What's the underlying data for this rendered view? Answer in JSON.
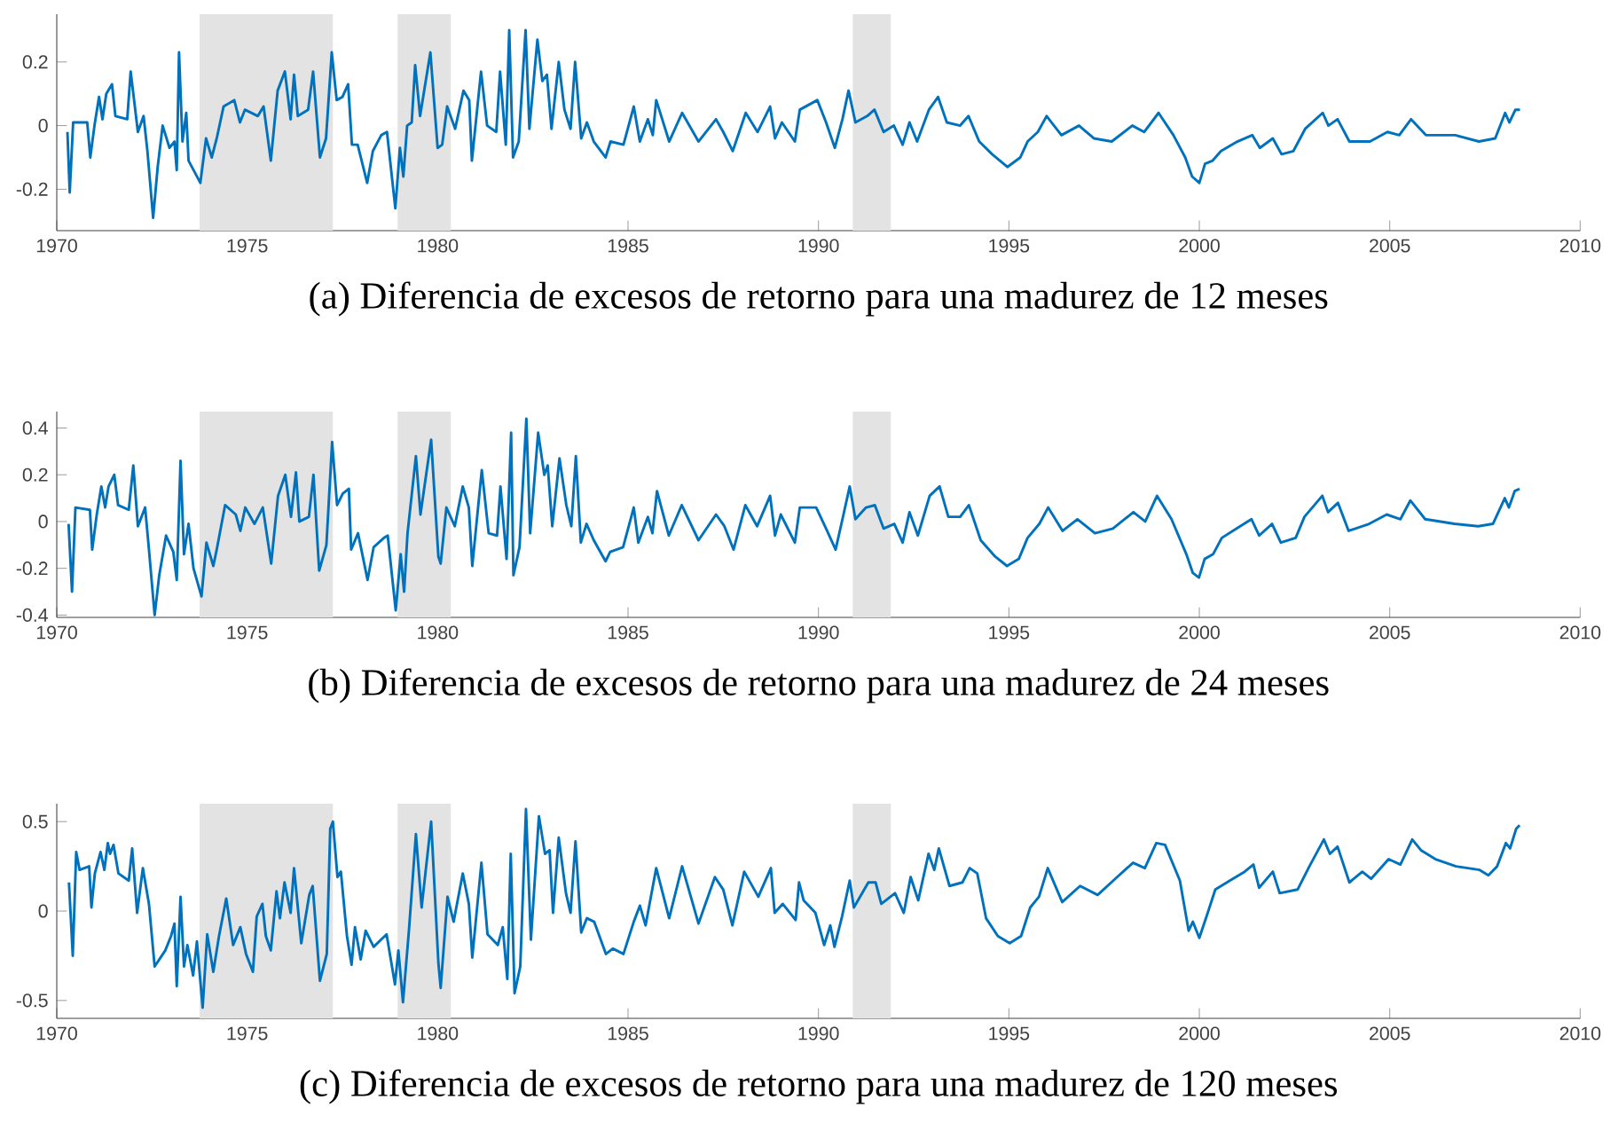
{
  "chart_data": [
    {
      "type": "line",
      "title": "(a) Diferencia de excesos de retorno para una madurez de 12 meses",
      "color": "#0072bd",
      "xlim": [
        1970,
        2010
      ],
      "ylim": [
        -0.33,
        0.35
      ],
      "xticks": [
        1970,
        1975,
        1980,
        1985,
        1990,
        1995,
        2000,
        2005,
        2010
      ],
      "yticks": [
        -0.2,
        0,
        0.2
      ],
      "bands": [
        {
          "axis": "x",
          "from": 1973.75,
          "to": 1977.25,
          "color": "#e3e3e3"
        },
        {
          "axis": "x",
          "from": 1978.95,
          "to": 1980.35,
          "color": "#e3e3e3"
        },
        {
          "axis": "x",
          "from": 1990.9,
          "to": 1991.9,
          "color": "#e3e3e3"
        }
      ],
      "x": [
        1970.28,
        1970.34,
        1970.43,
        1970.8,
        1970.88,
        1970.99,
        1971.11,
        1971.2,
        1971.3,
        1971.45,
        1971.54,
        1971.85,
        1971.94,
        1972.13,
        1972.28,
        1972.38,
        1972.53,
        1972.65,
        1972.78,
        1972.96,
        1973.09,
        1973.15,
        1973.21,
        1973.3,
        1973.4,
        1973.46,
        1973.77,
        1973.92,
        1974.07,
        1974.2,
        1974.38,
        1974.66,
        1974.81,
        1974.94,
        1975.28,
        1975.43,
        1975.62,
        1975.8,
        1975.99,
        1976.14,
        1976.23,
        1976.33,
        1976.6,
        1976.73,
        1976.91,
        1977.07,
        1977.22,
        1977.35,
        1977.5,
        1977.65,
        1977.75,
        1977.9,
        1978.15,
        1978.3,
        1978.52,
        1978.67,
        1978.89,
        1979.01,
        1979.1,
        1979.2,
        1979.32,
        1979.41,
        1979.54,
        1979.81,
        1980,
        1980.12,
        1980.25,
        1980.46,
        1980.68,
        1980.83,
        1980.9,
        1981.14,
        1981.3,
        1981.54,
        1981.64,
        1981.79,
        1981.88,
        1981.98,
        1982.13,
        1982.31,
        1982.41,
        1982.62,
        1982.75,
        1982.87,
        1982.99,
        1983.18,
        1983.33,
        1983.49,
        1983.61,
        1983.77,
        1983.92,
        1984.1,
        1984.41,
        1984.54,
        1984.88,
        1985.15,
        1985.31,
        1985.52,
        1985.65,
        1985.74,
        1986.08,
        1986.42,
        1986.85,
        1987.31,
        1987.5,
        1987.75,
        1988.09,
        1988.4,
        1988.73,
        1988.86,
        1989.04,
        1989.38,
        1989.51,
        1989.97,
        1990.2,
        1990.43,
        1990.63,
        1990.79,
        1990.97,
        1991.28,
        1991.47,
        1991.71,
        1991.98,
        1992.21,
        1992.39,
        1992.59,
        1992.9,
        1993.14,
        1993.37,
        1993.72,
        1993.94,
        1994.22,
        1994.56,
        1994.96,
        1995.3,
        1995.49,
        1995.76,
        1995.99,
        1996.38,
        1996.84,
        1997.23,
        1997.7,
        1998.24,
        1998.55,
        1998.93,
        1999.32,
        1999.63,
        1999.81,
        2000,
        2000.15,
        2000.35,
        2000.57,
        2001,
        2001.39,
        2001.59,
        2001.93,
        2002.16,
        2002.47,
        2002.78,
        2003.24,
        2003.39,
        2003.63,
        2003.94,
        2004.48,
        2004.94,
        2005.25,
        2005.56,
        2005.95,
        2006.72,
        2007.34,
        2007.77,
        2008.03,
        2008.14,
        2008.3,
        2008.42
      ],
      "values": [
        -0.02,
        -0.21,
        0.01,
        0.01,
        -0.1,
        0,
        0.09,
        0.02,
        0.1,
        0.13,
        0.03,
        0.02,
        0.17,
        -0.02,
        0.03,
        -0.08,
        -0.29,
        -0.13,
        0,
        -0.07,
        -0.05,
        -0.14,
        0.23,
        -0.05,
        0.04,
        -0.11,
        -0.18,
        -0.04,
        -0.1,
        -0.04,
        0.06,
        0.08,
        0.01,
        0.05,
        0.03,
        0.06,
        -0.11,
        0.11,
        0.17,
        0.02,
        0.16,
        0.03,
        0.05,
        0.17,
        -0.1,
        -0.04,
        0.23,
        0.08,
        0.09,
        0.13,
        -0.06,
        -0.06,
        -0.18,
        -0.08,
        -0.03,
        -0.02,
        -0.26,
        -0.07,
        -0.16,
        0,
        0.01,
        0.19,
        0.03,
        0.23,
        -0.07,
        -0.06,
        0.06,
        -0.01,
        0.11,
        0.08,
        -0.11,
        0.17,
        0,
        -0.02,
        0.17,
        -0.06,
        0.3,
        -0.1,
        -0.05,
        0.3,
        -0.01,
        0.27,
        0.14,
        0.16,
        -0.01,
        0.2,
        0.05,
        -0.01,
        0.2,
        -0.04,
        0.01,
        -0.05,
        -0.1,
        -0.05,
        -0.06,
        0.06,
        -0.05,
        0.02,
        -0.03,
        0.08,
        -0.05,
        0.04,
        -0.05,
        0.02,
        -0.02,
        -0.08,
        0.04,
        -0.02,
        0.06,
        -0.04,
        0.01,
        -0.05,
        0.05,
        0.08,
        0.01,
        -0.07,
        0.02,
        0.11,
        0.01,
        0.03,
        0.05,
        -0.02,
        0,
        -0.06,
        0.01,
        -0.05,
        0.05,
        0.09,
        0.01,
        0,
        0.03,
        -0.05,
        -0.09,
        -0.13,
        -0.1,
        -0.05,
        -0.02,
        0.03,
        -0.03,
        0,
        -0.04,
        -0.05,
        0,
        -0.02,
        0.04,
        -0.03,
        -0.1,
        -0.16,
        -0.18,
        -0.12,
        -0.11,
        -0.08,
        -0.05,
        -0.03,
        -0.07,
        -0.04,
        -0.09,
        -0.08,
        -0.01,
        0.04,
        0,
        0.02,
        -0.05,
        -0.05,
        -0.02,
        -0.03,
        0.02,
        -0.03,
        -0.03,
        -0.05,
        -0.04,
        0.04,
        0.01,
        0.05,
        0.05
      ]
    },
    {
      "type": "line",
      "title": "(b) Diferencia de excesos de retorno para una madurez de 24 meses",
      "color": "#0072bd",
      "xlim": [
        1970,
        2010
      ],
      "ylim": [
        -0.41,
        0.47
      ],
      "xticks": [
        1970,
        1975,
        1980,
        1985,
        1990,
        1995,
        2000,
        2005,
        2010
      ],
      "yticks": [
        -0.4,
        -0.2,
        0,
        0.2,
        0.4
      ],
      "bands": [
        {
          "axis": "x",
          "from": 1973.75,
          "to": 1977.25,
          "color": "#e3e3e3"
        },
        {
          "axis": "x",
          "from": 1978.95,
          "to": 1980.35,
          "color": "#e3e3e3"
        },
        {
          "axis": "x",
          "from": 1990.9,
          "to": 1991.9,
          "color": "#e3e3e3"
        }
      ],
      "x": [
        1970.31,
        1970.4,
        1970.49,
        1970.87,
        1970.93,
        1971.05,
        1971.17,
        1971.27,
        1971.36,
        1971.51,
        1971.61,
        1971.89,
        1972.01,
        1972.13,
        1972.32,
        1972.41,
        1972.57,
        1972.69,
        1972.87,
        1973.06,
        1973.15,
        1973.25,
        1973.34,
        1973.46,
        1973.59,
        1973.8,
        1973.93,
        1974.11,
        1974.2,
        1974.42,
        1974.7,
        1974.82,
        1974.95,
        1975.19,
        1975.41,
        1975.63,
        1975.81,
        1976,
        1976.15,
        1976.28,
        1976.37,
        1976.62,
        1976.74,
        1976.89,
        1977.08,
        1977.23,
        1977.36,
        1977.51,
        1977.67,
        1977.73,
        1977.91,
        1978.16,
        1978.32,
        1978.59,
        1978.69,
        1978.9,
        1979.03,
        1979.12,
        1979.21,
        1979.43,
        1979.55,
        1979.83,
        1980.02,
        1980.08,
        1980.23,
        1980.45,
        1980.66,
        1980.82,
        1980.91,
        1981.16,
        1981.34,
        1981.56,
        1981.65,
        1981.81,
        1981.93,
        1981.99,
        1982.15,
        1982.33,
        1982.43,
        1982.64,
        1982.8,
        1982.89,
        1983.01,
        1983.2,
        1983.38,
        1983.51,
        1983.63,
        1983.76,
        1983.91,
        1984.1,
        1984.41,
        1984.53,
        1984.87,
        1985.15,
        1985.27,
        1985.52,
        1985.64,
        1985.76,
        1986.07,
        1986.41,
        1986.85,
        1987.31,
        1987.53,
        1987.77,
        1988.08,
        1988.39,
        1988.73,
        1988.86,
        1989.01,
        1989.38,
        1989.51,
        1989.94,
        1990.2,
        1990.45,
        1990.63,
        1990.82,
        1990.97,
        1991.25,
        1991.48,
        1991.71,
        1991.99,
        1992.21,
        1992.39,
        1992.61,
        1992.92,
        1993.18,
        1993.41,
        1993.72,
        1993.95,
        1994.26,
        1994.64,
        1994.95,
        1995.26,
        1995.49,
        1995.8,
        1996.03,
        1996.41,
        1996.8,
        1997.26,
        1997.73,
        1998.27,
        1998.58,
        1998.89,
        1999.27,
        1999.66,
        1999.83,
        1999.99,
        2000.14,
        2000.36,
        2000.59,
        2000.98,
        2001.37,
        2001.57,
        2001.91,
        2002.14,
        2002.53,
        2002.76,
        2003.23,
        2003.38,
        2003.64,
        2003.92,
        2004.46,
        2004.92,
        2005.28,
        2005.54,
        2005.93,
        2006.7,
        2007.32,
        2007.71,
        2008.02,
        2008.13,
        2008.28,
        2008.41
      ],
      "values": [
        -0.01,
        -0.3,
        0.06,
        0.05,
        -0.12,
        0.03,
        0.15,
        0.06,
        0.15,
        0.2,
        0.07,
        0.05,
        0.24,
        -0.02,
        0.06,
        -0.1,
        -0.4,
        -0.23,
        -0.06,
        -0.13,
        -0.25,
        0.26,
        -0.14,
        -0.01,
        -0.2,
        -0.32,
        -0.09,
        -0.19,
        -0.12,
        0.07,
        0.03,
        -0.04,
        0.06,
        -0.01,
        0.06,
        -0.18,
        0.11,
        0.2,
        0.02,
        0.21,
        0,
        0.02,
        0.2,
        -0.21,
        -0.1,
        0.34,
        0.07,
        0.12,
        0.14,
        -0.12,
        -0.05,
        -0.25,
        -0.11,
        -0.07,
        -0.06,
        -0.38,
        -0.14,
        -0.3,
        -0.05,
        0.28,
        0.03,
        0.35,
        -0.15,
        -0.18,
        0.06,
        -0.02,
        0.15,
        0.06,
        -0.19,
        0.22,
        -0.05,
        -0.06,
        0.15,
        -0.16,
        0.38,
        -0.23,
        -0.11,
        0.44,
        -0.05,
        0.38,
        0.2,
        0.24,
        -0.02,
        0.27,
        0.07,
        -0.02,
        0.28,
        -0.09,
        -0.01,
        -0.08,
        -0.17,
        -0.13,
        -0.11,
        0.06,
        -0.09,
        0.02,
        -0.05,
        0.13,
        -0.06,
        0.07,
        -0.08,
        0.03,
        -0.02,
        -0.12,
        0.07,
        -0.02,
        0.11,
        -0.06,
        0.03,
        -0.09,
        0.06,
        0.06,
        -0.03,
        -0.12,
        0.01,
        0.15,
        0.01,
        0.06,
        0.07,
        -0.03,
        -0.01,
        -0.09,
        0.04,
        -0.06,
        0.11,
        0.15,
        0.02,
        0.02,
        0.07,
        -0.08,
        -0.15,
        -0.19,
        -0.16,
        -0.07,
        -0.01,
        0.06,
        -0.04,
        0.01,
        -0.05,
        -0.03,
        0.04,
        0,
        0.11,
        0.01,
        -0.14,
        -0.22,
        -0.24,
        -0.16,
        -0.14,
        -0.07,
        -0.03,
        0.01,
        -0.06,
        -0.01,
        -0.09,
        -0.07,
        0.02,
        0.11,
        0.04,
        0.08,
        -0.04,
        -0.01,
        0.03,
        0.01,
        0.09,
        0.01,
        -0.01,
        -0.02,
        -0.01,
        0.1,
        0.06,
        0.13,
        0.14
      ]
    },
    {
      "type": "line",
      "title": "(c) Diferencia de excesos de retorno para una madurez de 120 meses",
      "color": "#0072bd",
      "xlim": [
        1970,
        2010
      ],
      "ylim": [
        -0.6,
        0.6
      ],
      "xticks": [
        1970,
        1975,
        1980,
        1985,
        1990,
        1995,
        2000,
        2005,
        2010
      ],
      "yticks": [
        -0.5,
        0,
        0.5
      ],
      "bands": [
        {
          "axis": "x",
          "from": 1973.75,
          "to": 1977.25,
          "color": "#e3e3e3"
        },
        {
          "axis": "x",
          "from": 1978.95,
          "to": 1980.35,
          "color": "#e3e3e3"
        },
        {
          "axis": "x",
          "from": 1990.9,
          "to": 1991.9,
          "color": "#e3e3e3"
        }
      ],
      "x": [
        1970.32,
        1970.42,
        1970.51,
        1970.6,
        1970.85,
        1970.91,
        1971,
        1971.15,
        1971.25,
        1971.34,
        1971.4,
        1971.49,
        1971.62,
        1971.89,
        1971.98,
        1972.11,
        1972.26,
        1972.42,
        1972.57,
        1972.85,
        1973,
        1973.09,
        1973.15,
        1973.25,
        1973.34,
        1973.43,
        1973.58,
        1973.68,
        1973.83,
        1973.95,
        1974.11,
        1974.26,
        1974.45,
        1974.63,
        1974.82,
        1974.97,
        1975.15,
        1975.25,
        1975.4,
        1975.49,
        1975.62,
        1975.77,
        1975.86,
        1975.98,
        1976.14,
        1976.23,
        1976.42,
        1976.63,
        1976.72,
        1976.91,
        1977.09,
        1977.18,
        1977.25,
        1977.37,
        1977.46,
        1977.62,
        1977.74,
        1977.83,
        1977.98,
        1978.11,
        1978.32,
        1978.66,
        1978.88,
        1978.97,
        1979.09,
        1979.25,
        1979.43,
        1979.58,
        1979.83,
        1980.02,
        1980.08,
        1980.26,
        1980.42,
        1980.66,
        1980.82,
        1980.91,
        1981.15,
        1981.31,
        1981.58,
        1981.71,
        1981.83,
        1981.92,
        1982.02,
        1982.17,
        1982.32,
        1982.45,
        1982.66,
        1982.82,
        1982.94,
        1983.03,
        1983.18,
        1983.37,
        1983.49,
        1983.62,
        1983.77,
        1983.92,
        1984.11,
        1984.42,
        1984.6,
        1984.88,
        1985.15,
        1985.31,
        1985.46,
        1985.74,
        1986.08,
        1986.42,
        1986.85,
        1987.28,
        1987.5,
        1987.74,
        1988.05,
        1988.42,
        1988.75,
        1988.85,
        1989.06,
        1989.4,
        1989.49,
        1989.61,
        1989.92,
        1990.15,
        1990.31,
        1990.42,
        1990.62,
        1990.82,
        1990.93,
        1991.31,
        1991.5,
        1991.65,
        1992.01,
        1992.24,
        1992.42,
        1992.62,
        1992.89,
        1993.04,
        1993.16,
        1993.44,
        1993.78,
        1993.97,
        1994.17,
        1994.4,
        1994.71,
        1995.02,
        1995.32,
        1995.56,
        1995.79,
        1996.02,
        1996.4,
        1996.87,
        1997.33,
        1997.79,
        1998.26,
        1998.57,
        1998.87,
        1999.1,
        1999.49,
        1999.72,
        1999.83,
        2000,
        2000.19,
        2000.42,
        2000.8,
        2001.19,
        2001.42,
        2001.57,
        2001.93,
        2002.11,
        2002.58,
        2002.89,
        2003.27,
        2003.43,
        2003.63,
        2003.94,
        2004.28,
        2004.51,
        2004.97,
        2005.28,
        2005.59,
        2005.82,
        2006.2,
        2006.74,
        2007.36,
        2007.59,
        2007.82,
        2008.05,
        2008.16,
        2008.32,
        2008.41
      ],
      "values": [
        0.16,
        -0.25,
        0.33,
        0.23,
        0.25,
        0.02,
        0.21,
        0.33,
        0.23,
        0.38,
        0.32,
        0.37,
        0.21,
        0.17,
        0.35,
        -0.01,
        0.24,
        0.04,
        -0.31,
        -0.22,
        -0.14,
        -0.07,
        -0.42,
        0.08,
        -0.31,
        -0.19,
        -0.36,
        -0.17,
        -0.54,
        -0.13,
        -0.34,
        -0.14,
        0.07,
        -0.19,
        -0.09,
        -0.24,
        -0.34,
        -0.03,
        0.04,
        -0.14,
        -0.22,
        0.11,
        -0.04,
        0.16,
        -0.01,
        0.24,
        -0.18,
        0.09,
        0.14,
        -0.39,
        -0.24,
        0.46,
        0.5,
        0.19,
        0.22,
        -0.14,
        -0.3,
        -0.09,
        -0.27,
        -0.11,
        -0.2,
        -0.13,
        -0.41,
        -0.22,
        -0.51,
        -0.1,
        0.43,
        0.02,
        0.5,
        -0.29,
        -0.43,
        0.08,
        -0.06,
        0.21,
        0.04,
        -0.26,
        0.27,
        -0.13,
        -0.19,
        -0.09,
        -0.38,
        0.32,
        -0.46,
        -0.31,
        0.57,
        -0.16,
        0.53,
        0.32,
        0.34,
        -0.01,
        0.41,
        0.1,
        -0.01,
        0.39,
        -0.12,
        -0.04,
        -0.06,
        -0.24,
        -0.21,
        -0.24,
        -0.06,
        0.03,
        -0.08,
        0.24,
        -0.04,
        0.25,
        -0.07,
        0.19,
        0.12,
        -0.08,
        0.22,
        0.08,
        0.24,
        -0.01,
        0.04,
        -0.05,
        0.16,
        0.06,
        -0.01,
        -0.19,
        -0.08,
        -0.2,
        -0.03,
        0.17,
        0.02,
        0.16,
        0.16,
        0.04,
        0.1,
        -0.01,
        0.19,
        0.06,
        0.32,
        0.23,
        0.35,
        0.14,
        0.16,
        0.24,
        0.21,
        -0.04,
        -0.14,
        -0.18,
        -0.14,
        0.02,
        0.08,
        0.24,
        0.05,
        0.14,
        0.09,
        0.18,
        0.27,
        0.24,
        0.38,
        0.37,
        0.17,
        -0.11,
        -0.06,
        -0.15,
        -0.03,
        0.12,
        0.17,
        0.22,
        0.26,
        0.13,
        0.22,
        0.1,
        0.12,
        0.25,
        0.4,
        0.32,
        0.36,
        0.16,
        0.22,
        0.18,
        0.29,
        0.26,
        0.4,
        0.34,
        0.29,
        0.25,
        0.23,
        0.2,
        0.25,
        0.38,
        0.35,
        0.46,
        0.48
      ]
    }
  ]
}
